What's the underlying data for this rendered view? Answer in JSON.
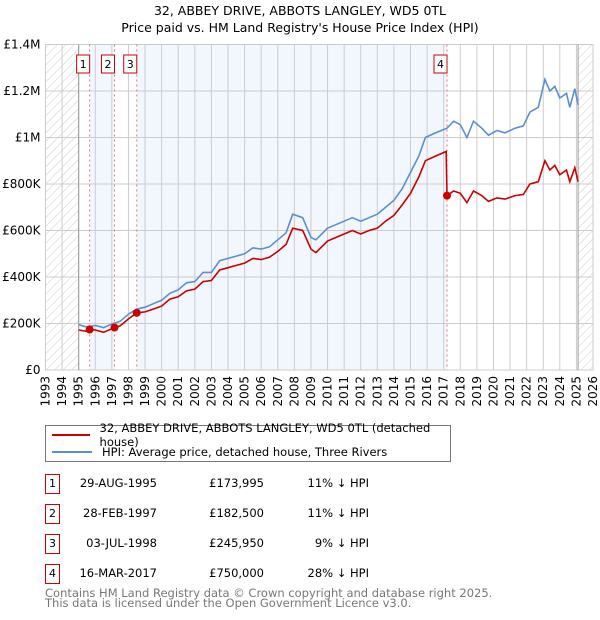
{
  "header": {
    "title": "32, ABBEY DRIVE, ABBOTS LANGLEY, WD5 0TL",
    "subtitle": "Price paid vs. HM Land Registry's House Price Index (HPI)"
  },
  "chart_data": {
    "type": "line",
    "title": "32, ABBEY DRIVE, ABBOTS LANGLEY, WD5 0TL",
    "subtitle": "Price paid vs. HM Land Registry's House Price Index (HPI)",
    "xlim": [
      1993,
      2026
    ],
    "ylim": [
      0,
      1400000
    ],
    "yticks": [
      {
        "v": 0,
        "l": "£0"
      },
      {
        "v": 200000,
        "l": "£200K"
      },
      {
        "v": 400000,
        "l": "£400K"
      },
      {
        "v": 600000,
        "l": "£600K"
      },
      {
        "v": 800000,
        "l": "£800K"
      },
      {
        "v": 1000000,
        "l": "£1M"
      },
      {
        "v": 1200000,
        "l": "£1.2M"
      },
      {
        "v": 1400000,
        "l": "£1.4M"
      }
    ],
    "xticks": [
      "1993",
      "1994",
      "1995",
      "1996",
      "1997",
      "1998",
      "1999",
      "2000",
      "2001",
      "2002",
      "2003",
      "2004",
      "2005",
      "2006",
      "2007",
      "2008",
      "2009",
      "2010",
      "2011",
      "2012",
      "2013",
      "2014",
      "2015",
      "2016",
      "2017",
      "2018",
      "2019",
      "2020",
      "2021",
      "2022",
      "2023",
      "2024",
      "2025",
      "2026"
    ],
    "grid": true,
    "series": [
      {
        "name": "HPI: Average price, detached house, Three Rivers",
        "color": "#5b8fd0",
        "points": [
          [
            1995,
            195000
          ],
          [
            1995.5,
            185000
          ],
          [
            1996,
            192000
          ],
          [
            1996.5,
            182000
          ],
          [
            1997,
            198000
          ],
          [
            1997.5,
            210000
          ],
          [
            1998,
            240000
          ],
          [
            1998.5,
            262000
          ],
          [
            1999,
            270000
          ],
          [
            1999.5,
            285000
          ],
          [
            2000,
            300000
          ],
          [
            2000.5,
            330000
          ],
          [
            2001,
            345000
          ],
          [
            2001.5,
            375000
          ],
          [
            2002,
            380000
          ],
          [
            2002.5,
            420000
          ],
          [
            2003,
            420000
          ],
          [
            2003.5,
            470000
          ],
          [
            2004,
            480000
          ],
          [
            2004.5,
            490000
          ],
          [
            2005,
            500000
          ],
          [
            2005.5,
            525000
          ],
          [
            2006,
            520000
          ],
          [
            2006.5,
            530000
          ],
          [
            2007,
            560000
          ],
          [
            2007.5,
            590000
          ],
          [
            2007.9,
            670000
          ],
          [
            2008.5,
            655000
          ],
          [
            2009,
            570000
          ],
          [
            2009.3,
            560000
          ],
          [
            2010,
            610000
          ],
          [
            2010.5,
            625000
          ],
          [
            2011,
            640000
          ],
          [
            2011.5,
            655000
          ],
          [
            2012,
            640000
          ],
          [
            2012.5,
            655000
          ],
          [
            2013,
            670000
          ],
          [
            2013.5,
            700000
          ],
          [
            2014,
            730000
          ],
          [
            2014.5,
            780000
          ],
          [
            2015,
            850000
          ],
          [
            2015.5,
            920000
          ],
          [
            2015.9,
            1000000
          ],
          [
            2016.5,
            1020000
          ],
          [
            2017.2,
            1040000
          ],
          [
            2017.6,
            1070000
          ],
          [
            2018,
            1055000
          ],
          [
            2018.4,
            1000000
          ],
          [
            2018.8,
            1070000
          ],
          [
            2019.3,
            1040000
          ],
          [
            2019.7,
            1010000
          ],
          [
            2020.2,
            1030000
          ],
          [
            2020.7,
            1020000
          ],
          [
            2021.3,
            1040000
          ],
          [
            2021.8,
            1050000
          ],
          [
            2022.2,
            1110000
          ],
          [
            2022.7,
            1130000
          ],
          [
            2023.1,
            1250000
          ],
          [
            2023.4,
            1200000
          ],
          [
            2023.7,
            1220000
          ],
          [
            2024,
            1170000
          ],
          [
            2024.4,
            1190000
          ],
          [
            2024.6,
            1130000
          ],
          [
            2024.9,
            1210000
          ],
          [
            2025.1,
            1140000
          ]
        ]
      },
      {
        "name": "32, ABBEY DRIVE, ABBOTS LANGLEY, WD5 0TL (detached house)",
        "color": "#cc0000",
        "points": [
          [
            1995,
            172000
          ],
          [
            1995.5,
            166000
          ],
          [
            1995.66,
            173995
          ],
          [
            1996,
            172000
          ],
          [
            1996.5,
            162000
          ],
          [
            1997.16,
            182500
          ],
          [
            1997.5,
            190000
          ],
          [
            1998,
            220000
          ],
          [
            1998.5,
            245950
          ],
          [
            1999,
            250000
          ],
          [
            1999.5,
            262000
          ],
          [
            2000,
            275000
          ],
          [
            2000.5,
            305000
          ],
          [
            2001,
            315000
          ],
          [
            2001.5,
            340000
          ],
          [
            2002,
            348000
          ],
          [
            2002.5,
            380000
          ],
          [
            2003,
            385000
          ],
          [
            2003.5,
            430000
          ],
          [
            2004,
            440000
          ],
          [
            2004.5,
            450000
          ],
          [
            2005,
            460000
          ],
          [
            2005.5,
            480000
          ],
          [
            2006,
            475000
          ],
          [
            2006.5,
            485000
          ],
          [
            2007,
            510000
          ],
          [
            2007.5,
            540000
          ],
          [
            2007.9,
            610000
          ],
          [
            2008.5,
            600000
          ],
          [
            2009,
            520000
          ],
          [
            2009.3,
            505000
          ],
          [
            2010,
            555000
          ],
          [
            2010.5,
            570000
          ],
          [
            2011,
            585000
          ],
          [
            2011.5,
            600000
          ],
          [
            2012,
            585000
          ],
          [
            2012.5,
            600000
          ],
          [
            2013,
            610000
          ],
          [
            2013.5,
            640000
          ],
          [
            2014,
            665000
          ],
          [
            2014.5,
            710000
          ],
          [
            2015,
            760000
          ],
          [
            2015.5,
            830000
          ],
          [
            2015.9,
            900000
          ],
          [
            2016.5,
            920000
          ],
          [
            2017.15,
            940000
          ],
          [
            2017.2,
            750000
          ],
          [
            2017.6,
            770000
          ],
          [
            2018,
            760000
          ],
          [
            2018.4,
            720000
          ],
          [
            2018.8,
            770000
          ],
          [
            2019.3,
            750000
          ],
          [
            2019.7,
            725000
          ],
          [
            2020.2,
            740000
          ],
          [
            2020.7,
            735000
          ],
          [
            2021.3,
            750000
          ],
          [
            2021.8,
            755000
          ],
          [
            2022.2,
            800000
          ],
          [
            2022.7,
            810000
          ],
          [
            2023.1,
            900000
          ],
          [
            2023.4,
            860000
          ],
          [
            2023.7,
            880000
          ],
          [
            2024,
            840000
          ],
          [
            2024.4,
            860000
          ],
          [
            2024.6,
            810000
          ],
          [
            2024.9,
            870000
          ],
          [
            2025.1,
            810000
          ]
        ]
      }
    ],
    "sales": [
      {
        "n": "1",
        "x": 1995.66,
        "y": 173995
      },
      {
        "n": "2",
        "x": 1997.16,
        "y": 182500
      },
      {
        "n": "3",
        "x": 1998.5,
        "y": 245950
      },
      {
        "n": "4",
        "x": 2017.2,
        "y": 750000
      }
    ],
    "shaded": [
      [
        1995.66,
        1997.16
      ],
      [
        1998.5,
        2017.2
      ]
    ],
    "hatched": [
      [
        1993,
        1995
      ],
      [
        2025.1,
        2026
      ]
    ]
  },
  "legend": {
    "property": "32, ABBEY DRIVE, ABBOTS LANGLEY, WD5 0TL (detached house)",
    "hpi": "HPI: Average price, detached house, Three Rivers"
  },
  "sales_table": [
    {
      "n": "1",
      "date": "29-AUG-1995",
      "price": "£173,995",
      "hpi": "11% ↓ HPI"
    },
    {
      "n": "2",
      "date": "28-FEB-1997",
      "price": "£182,500",
      "hpi": "11% ↓ HPI"
    },
    {
      "n": "3",
      "date": "03-JUL-1998",
      "price": "£245,950",
      "hpi": "9% ↓ HPI"
    },
    {
      "n": "4",
      "date": "16-MAR-2017",
      "price": "£750,000",
      "hpi": "28% ↓ HPI"
    }
  ],
  "footer": {
    "line1": "Contains HM Land Registry data © Crown copyright and database right 2025.",
    "line2": "This data is licensed under the Open Government Licence v3.0."
  }
}
